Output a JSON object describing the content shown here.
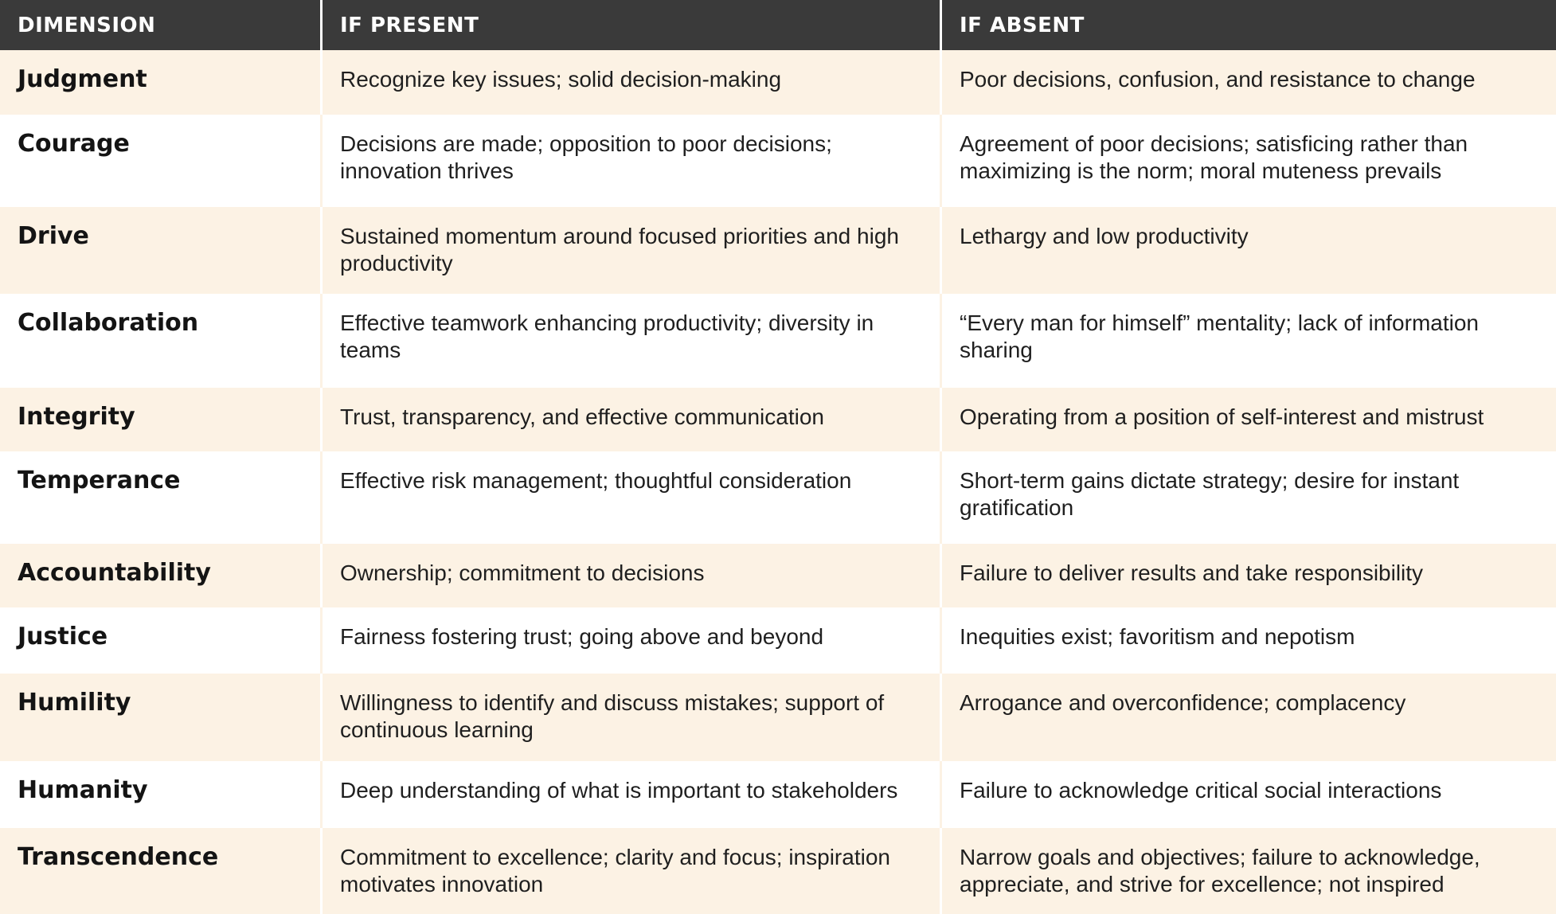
{
  "header": {
    "dimension": "DIMENSION",
    "if_present": "IF PRESENT",
    "if_absent": "IF ABSENT"
  },
  "rows": [
    {
      "dimension": "Judgment",
      "if_present": "Recognize key issues; solid decision-making",
      "if_absent": "Poor decisions, confusion, and resistance to change"
    },
    {
      "dimension": "Courage",
      "if_present": "Decisions are made; opposition to poor decisions; innovation thrives",
      "if_absent": "Agreement of poor decisions; satisficing rather than maximizing is the norm; moral muteness prevails"
    },
    {
      "dimension": "Drive",
      "if_present": "Sustained momentum around focused priorities and high productivity",
      "if_absent": "Lethargy and low productivity"
    },
    {
      "dimension": "Collaboration",
      "if_present": "Effective teamwork enhancing productivity; diversity in teams",
      "if_absent": "“Every man for himself” mentality; lack of information sharing"
    },
    {
      "dimension": "Integrity",
      "if_present": "Trust, transparency, and effective communication",
      "if_absent": "Operating from a position of self-interest and mistrust"
    },
    {
      "dimension": "Temperance",
      "if_present": "Effective risk management; thoughtful consideration",
      "if_absent": "Short-term gains dictate strategy; desire for instant gratification"
    },
    {
      "dimension": "Accountability",
      "if_present": "Ownership; commitment to decisions",
      "if_absent": "Failure to deliver results and take responsibility"
    },
    {
      "dimension": "Justice",
      "if_present": "Fairness fostering trust; going above and beyond",
      "if_absent": "Inequities exist; favoritism and nepotism"
    },
    {
      "dimension": "Humility",
      "if_present": "Willingness to identify and discuss mistakes; support of continuous learning",
      "if_absent": "Arrogance and overconfidence; complacency"
    },
    {
      "dimension": "Humanity",
      "if_present": "Deep understanding of what is important to stakeholders",
      "if_absent": "Failure to acknowledge critical social interactions"
    },
    {
      "dimension": "Transcendence",
      "if_present": "Commitment to excellence; clarity and focus; inspiration motivates innovation",
      "if_absent": "Narrow goals and objectives; failure to acknowledge, appreciate, and strive for excellence; not inspired"
    }
  ],
  "colors": {
    "header_bg": "#3a3a3a",
    "shaded_row_bg": "#fcf2e4",
    "plain_row_bg": "#ffffff"
  }
}
